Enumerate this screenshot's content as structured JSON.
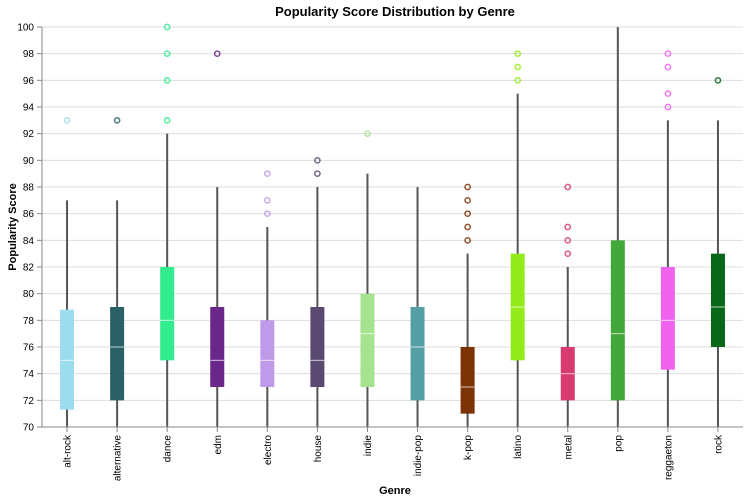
{
  "chart_data": {
    "type": "boxplot",
    "title": "Popularity Score Distribution by Genre",
    "xlabel": "Genre",
    "ylabel": "Popularity Score",
    "ylim": [
      70,
      100
    ],
    "yticks": [
      70,
      72,
      74,
      76,
      78,
      80,
      82,
      84,
      86,
      88,
      90,
      92,
      94,
      96,
      98,
      100
    ],
    "grid": true,
    "categories": [
      "alt-rock",
      "alternative",
      "dance",
      "edm",
      "electro",
      "house",
      "indie",
      "indie-pop",
      "k-pop",
      "latino",
      "metal",
      "pop",
      "reggaeton",
      "rock"
    ],
    "boxes": [
      {
        "category": "alt-rock",
        "min": 70,
        "q1": 71.3,
        "median": 75,
        "q3": 78.8,
        "max": 87,
        "outliers": [
          93
        ],
        "color": "#9cdcef"
      },
      {
        "category": "alternative",
        "min": 70,
        "q1": 72,
        "median": 76,
        "q3": 79,
        "max": 87,
        "outliers": [
          93
        ],
        "color": "#2a6166"
      },
      {
        "category": "dance",
        "min": 70,
        "q1": 75,
        "median": 78,
        "q3": 82,
        "max": 92,
        "outliers": [
          93,
          96,
          98,
          100
        ],
        "color": "#33ec8e"
      },
      {
        "category": "edm",
        "min": 70,
        "q1": 73,
        "median": 75,
        "q3": 79,
        "max": 88,
        "outliers": [
          98
        ],
        "color": "#6a278a"
      },
      {
        "category": "electro",
        "min": 70,
        "q1": 73,
        "median": 75,
        "q3": 78,
        "max": 85,
        "outliers": [
          86,
          87,
          89
        ],
        "color": "#bf9ae8"
      },
      {
        "category": "house",
        "min": 70,
        "q1": 73,
        "median": 75,
        "q3": 79,
        "max": 88,
        "outliers": [
          89,
          90
        ],
        "color": "#5a4a72"
      },
      {
        "category": "indie",
        "min": 70,
        "q1": 73,
        "median": 77,
        "q3": 80,
        "max": 89,
        "outliers": [
          92
        ],
        "color": "#a6e38e"
      },
      {
        "category": "indie-pop",
        "min": 70,
        "q1": 72,
        "median": 76,
        "q3": 79,
        "max": 88,
        "outliers": [],
        "color": "#569fa4"
      },
      {
        "category": "k-pop",
        "min": 70,
        "q1": 71,
        "median": 73,
        "q3": 76,
        "max": 83,
        "outliers": [
          84,
          85,
          86,
          87,
          88
        ],
        "color": "#7c3306"
      },
      {
        "category": "latino",
        "min": 70,
        "q1": 75,
        "median": 79,
        "q3": 83,
        "max": 95,
        "outliers": [
          96,
          97,
          98
        ],
        "color": "#94eb1a"
      },
      {
        "category": "metal",
        "min": 70,
        "q1": 72,
        "median": 74,
        "q3": 76,
        "max": 82,
        "outliers": [
          83,
          84,
          85,
          88
        ],
        "color": "#d83a72"
      },
      {
        "category": "pop",
        "min": 70,
        "q1": 72,
        "median": 77,
        "q3": 84,
        "max": 100,
        "outliers": [],
        "color": "#42a83a"
      },
      {
        "category": "reggaeton",
        "min": 70,
        "q1": 74.3,
        "median": 78,
        "q3": 82,
        "max": 93,
        "outliers": [
          94,
          95,
          97,
          98
        ],
        "color": "#ef63ef"
      },
      {
        "category": "rock",
        "min": 70,
        "q1": 76,
        "median": 79,
        "q3": 83,
        "max": 93,
        "outliers": [
          96
        ],
        "color": "#086718"
      }
    ]
  }
}
